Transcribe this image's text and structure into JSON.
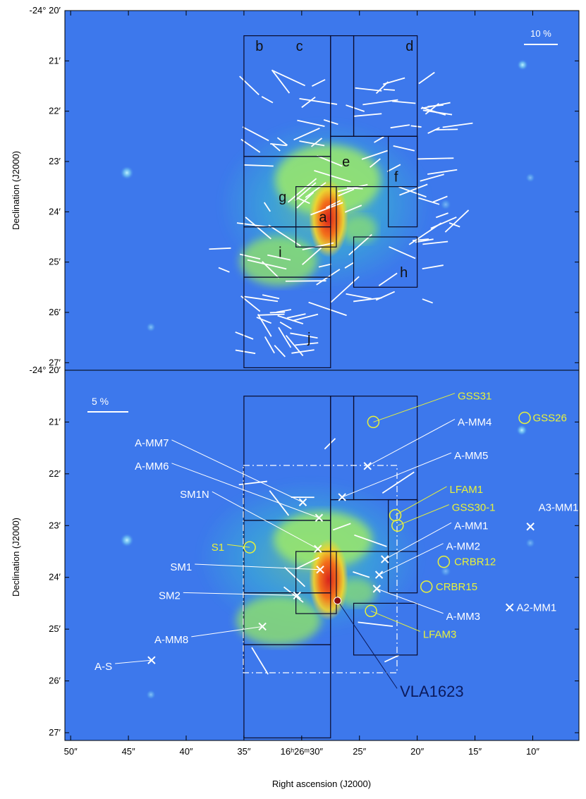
{
  "chart_data": [
    {
      "type": "heatmap",
      "panel": "top",
      "scale_bar_label": "10 %",
      "y_ticks": [
        "-24° 20′",
        "21′",
        "22′",
        "23′",
        "24′",
        "25′",
        "26′",
        "27′"
      ],
      "y_tick_values": [
        20,
        21,
        22,
        23,
        24,
        25,
        26,
        27
      ],
      "ylim": [
        20,
        27.15
      ],
      "xlim": [
        50.5,
        6
      ],
      "ylabel": "Declination (J2000)",
      "regions": [
        {
          "label": "b",
          "ra": [
            35,
            27.5
          ],
          "dec": [
            20.5,
            22.9
          ]
        },
        {
          "label": "c",
          "ra": [
            27.5,
            25.5
          ],
          "dec": [
            20.5,
            22.5
          ]
        },
        {
          "label": "d",
          "ra": [
            25.5,
            20
          ],
          "dec": [
            20.5,
            22.5
          ]
        },
        {
          "label": "e",
          "ra": [
            27.5,
            20
          ],
          "dec": [
            22.5,
            23.5
          ]
        },
        {
          "label": "f",
          "ra": [
            22.5,
            20
          ],
          "dec": [
            22.5,
            24.3
          ]
        },
        {
          "label": "g",
          "ra": [
            35,
            27.5
          ],
          "dec": [
            22.9,
            24.3
          ]
        },
        {
          "label": "a",
          "ra": [
            30.5,
            27
          ],
          "dec": [
            23.5,
            24.7
          ]
        },
        {
          "label": "i",
          "ra": [
            35,
            27.5
          ],
          "dec": [
            24.3,
            25.3
          ]
        },
        {
          "label": "h",
          "ra": [
            25.5,
            20
          ],
          "dec": [
            24.5,
            25.5
          ]
        },
        {
          "label": "j",
          "ra": [
            35,
            27.5
          ],
          "dec": [
            25.3,
            27.1
          ]
        }
      ],
      "label_positions": {
        "b": [
          34,
          20.8
        ],
        "c": [
          30.5,
          20.8
        ],
        "d": [
          21,
          20.8
        ],
        "e": [
          26.5,
          23.1
        ],
        "f": [
          22,
          23.4
        ],
        "g": [
          32,
          23.8
        ],
        "a": [
          28.5,
          24.2
        ],
        "i": [
          32,
          24.9
        ],
        "h": [
          21.5,
          25.3
        ],
        "j": [
          29.5,
          26.6
        ]
      }
    },
    {
      "type": "heatmap",
      "panel": "bottom",
      "scale_bar_label": "5 %",
      "y_ticks": [
        "-24° 20′",
        "21′",
        "22′",
        "23′",
        "24′",
        "25′",
        "26′",
        "27′"
      ],
      "y_tick_values": [
        20,
        21,
        22,
        23,
        24,
        25,
        26,
        27
      ],
      "ylim": [
        20,
        27.15
      ],
      "xlim": [
        50.5,
        6
      ],
      "x_ticks": [
        "50″",
        "45″",
        "40″",
        "35″",
        "16ʰ26ᵐ30″",
        "25″",
        "20″",
        "15″",
        "10″"
      ],
      "x_tick_values": [
        50,
        45,
        40,
        35,
        30,
        25,
        20,
        15,
        10
      ],
      "xlabel": "Right ascension (J2000)",
      "ylabel": "Declination (J2000)",
      "label_color_white": "#ffffff",
      "label_color_yellow": "#e8f23a",
      "label_color_dark": "#0b1a5c",
      "sources": [
        {
          "name": "A-MM7",
          "marker": "x",
          "ra": 29.9,
          "dec": 22.55,
          "label_ra": 41.5,
          "label_dec": 21.4,
          "color": "white"
        },
        {
          "name": "A-MM6",
          "marker": "x",
          "ra": 28.5,
          "dec": 22.85,
          "label_ra": 41.5,
          "label_dec": 21.85,
          "color": "white"
        },
        {
          "name": "SM1N",
          "marker": "x",
          "ra": 28.6,
          "dec": 23.45,
          "label_ra": 38.0,
          "label_dec": 22.4,
          "color": "white"
        },
        {
          "name": "SM1",
          "marker": "x",
          "ra": 28.4,
          "dec": 23.85,
          "label_ra": 39.5,
          "label_dec": 23.8,
          "color": "white"
        },
        {
          "name": "SM2",
          "marker": "x",
          "ra": 30.4,
          "dec": 24.35,
          "label_ra": 40.5,
          "label_dec": 24.35,
          "color": "white"
        },
        {
          "name": "A-MM8",
          "marker": "x",
          "ra": 33.4,
          "dec": 24.95,
          "label_ra": 39.8,
          "label_dec": 25.2,
          "color": "white"
        },
        {
          "name": "A-S",
          "marker": "x",
          "ra": 43.0,
          "dec": 25.6,
          "label_ra": 46.4,
          "label_dec": 25.72,
          "color": "white"
        },
        {
          "name": "A-MM4",
          "marker": "x",
          "ra": 24.3,
          "dec": 21.85,
          "label_ra": 16.5,
          "label_dec": 21.0,
          "color": "white"
        },
        {
          "name": "A-MM5",
          "marker": "x",
          "ra": 26.5,
          "dec": 22.45,
          "label_ra": 16.8,
          "label_dec": 21.65,
          "color": "white"
        },
        {
          "name": "A-MM1",
          "marker": "x",
          "ra": 22.8,
          "dec": 23.65,
          "label_ra": 16.8,
          "label_dec": 23.0,
          "color": "white"
        },
        {
          "name": "A-MM2",
          "marker": "x",
          "ra": 23.3,
          "dec": 23.95,
          "label_ra": 17.5,
          "label_dec": 23.4,
          "color": "white"
        },
        {
          "name": "A-MM3",
          "marker": "x",
          "ra": 23.5,
          "dec": 24.22,
          "label_ra": 17.5,
          "label_dec": 24.75,
          "color": "white"
        },
        {
          "name": "A3-MM1",
          "marker": "x",
          "ra": 10.2,
          "dec": 23.02,
          "label_ra": 9.5,
          "label_dec": 22.65,
          "color": "white"
        },
        {
          "name": "A2-MM1",
          "marker": "x",
          "ra": 12.0,
          "dec": 24.58,
          "label_ra": 11.4,
          "label_dec": 24.58,
          "color": "white"
        },
        {
          "name": "GSS31",
          "marker": "o",
          "ra": 23.8,
          "dec": 21.0,
          "label_ra": 16.5,
          "label_dec": 20.5,
          "color": "yellow"
        },
        {
          "name": "GSS26",
          "marker": "o",
          "ra": 10.7,
          "dec": 20.92,
          "label_ra": 10.0,
          "label_dec": 20.92,
          "color": "yellow"
        },
        {
          "name": "LFAM1",
          "marker": "o",
          "ra": 21.9,
          "dec": 22.8,
          "label_ra": 17.2,
          "label_dec": 22.3,
          "color": "yellow"
        },
        {
          "name": "GSS30-1",
          "marker": "o",
          "ra": 21.7,
          "dec": 23.0,
          "label_ra": 17.0,
          "label_dec": 22.65,
          "color": "yellow"
        },
        {
          "name": "CRBR12",
          "marker": "o",
          "ra": 17.7,
          "dec": 23.7,
          "label_ra": 16.8,
          "label_dec": 23.7,
          "color": "yellow"
        },
        {
          "name": "CRBR15",
          "marker": "o",
          "ra": 19.2,
          "dec": 24.18,
          "label_ra": 18.4,
          "label_dec": 24.18,
          "color": "yellow"
        },
        {
          "name": "S1",
          "marker": "o",
          "ra": 34.5,
          "dec": 23.42,
          "label_ra": 36.7,
          "label_dec": 23.42,
          "color": "yellow"
        },
        {
          "name": "LFAM3",
          "marker": "o",
          "ra": 24.0,
          "dec": 24.65,
          "label_ra": 19.5,
          "label_dec": 25.1,
          "color": "yellow"
        },
        {
          "name": "VLA1623",
          "marker": "dot",
          "ra": 26.9,
          "dec": 24.45,
          "label_ra": 21.5,
          "label_dec": 26.2,
          "color": "dark"
        }
      ]
    }
  ]
}
